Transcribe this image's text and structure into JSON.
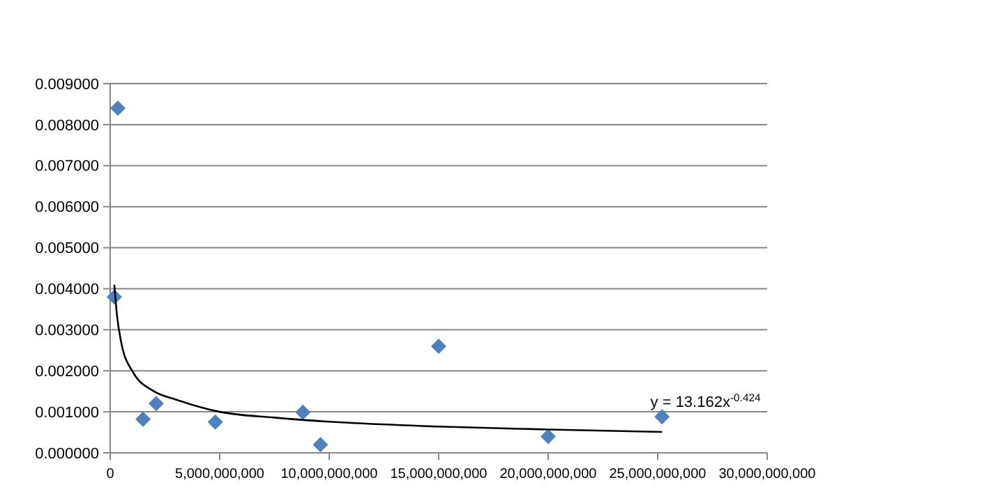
{
  "chart_data": {
    "type": "scatter",
    "marker": "diamond",
    "grid": "y",
    "xlim": [
      0,
      30000000000
    ],
    "ylim": [
      0,
      0.009
    ],
    "xticks": [
      {
        "value": 0,
        "label": "0"
      },
      {
        "value": 5000000000,
        "label": "5,000,000,000"
      },
      {
        "value": 10000000000,
        "label": "10,000,000,000"
      },
      {
        "value": 15000000000,
        "label": "15,000,000,000"
      },
      {
        "value": 20000000000,
        "label": "20,000,000,000"
      },
      {
        "value": 25000000000,
        "label": "25,000,000,000"
      },
      {
        "value": 30000000000,
        "label": "30,000,000,000"
      }
    ],
    "yticks": [
      {
        "value": 0,
        "label": "0.000000"
      },
      {
        "value": 0.001,
        "label": "0.001000"
      },
      {
        "value": 0.002,
        "label": "0.002000"
      },
      {
        "value": 0.003,
        "label": "0.003000"
      },
      {
        "value": 0.004,
        "label": "0.004000"
      },
      {
        "value": 0.005,
        "label": "0.005000"
      },
      {
        "value": 0.006,
        "label": "0.006000"
      },
      {
        "value": 0.007,
        "label": "0.007000"
      },
      {
        "value": 0.008,
        "label": "0.008000"
      },
      {
        "value": 0.009,
        "label": "0.009000"
      }
    ],
    "series": [
      {
        "color": "#4f81bd",
        "x": [
          190000000,
          350000000,
          1500000000,
          2100000000,
          4800000000,
          8800000000,
          9600000000,
          15000000000,
          20000000000,
          25200000000
        ],
        "values": [
          0.0038,
          0.0084,
          0.00082,
          0.0012,
          0.00075,
          0.00099,
          0.0002,
          0.0026,
          0.0004,
          0.00088
        ]
      },
      {
        "type": "line",
        "color": "#000000",
        "marker": "none",
        "line_style": "solid",
        "x": [
          190000000,
          300000000,
          500000000,
          1000000000,
          2000000000,
          3000000000,
          5000000000,
          7500000000,
          10000000000,
          15000000000,
          20000000000,
          25200000000
        ],
        "values": [
          0.0041,
          0.0034,
          0.0027,
          0.002,
          0.0015,
          0.0013,
          0.001,
          0.00086,
          0.00076,
          0.00064,
          0.00057,
          0.00051
        ]
      }
    ],
    "annotations": [
      "y = 13.162x$^{-0.424}$"
    ]
  }
}
